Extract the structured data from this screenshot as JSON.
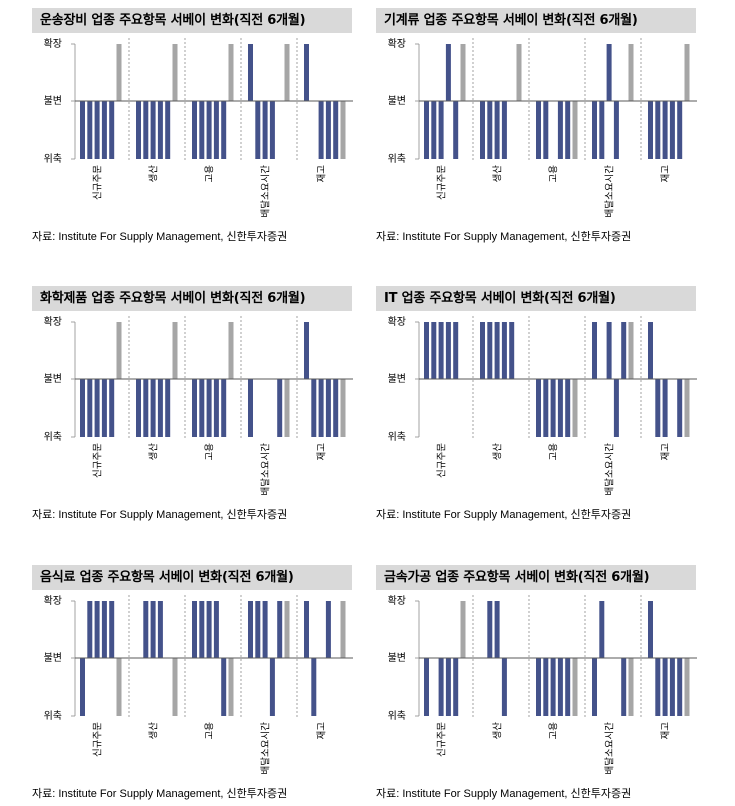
{
  "colors": {
    "bar": "#44528a",
    "latest_bar": "#a6a6a6",
    "title_bg": "#d9d9d9",
    "separator": "#8c8c8c",
    "axis": "#8c8c8c",
    "baseline": "#595959"
  },
  "chart_data": [
    {
      "type": "bar",
      "title": "운송장비 업종 주요항목 서베이 변화(직전 6개월)",
      "categories": [
        "신규주문",
        "생산",
        "고용",
        "배달소요시간",
        "재고"
      ],
      "yticks": [
        1,
        0,
        -1
      ],
      "yticklabels": [
        "확장",
        "불변",
        "위축"
      ],
      "ylim": [
        -1,
        1
      ],
      "values": [
        [
          -1,
          -1,
          -1,
          -1,
          -1,
          1
        ],
        [
          -1,
          -1,
          -1,
          -1,
          -1,
          1
        ],
        [
          -1,
          -1,
          -1,
          -1,
          -1,
          1
        ],
        [
          1,
          -1,
          -1,
          -1,
          0,
          1
        ],
        [
          1,
          0,
          -1,
          -1,
          -1,
          -1
        ]
      ],
      "source": "자료: Institute For Supply Management, 신한투자증권"
    },
    {
      "type": "bar",
      "title": "기계류 업종 주요항목 서베이 변화(직전 6개월)",
      "categories": [
        "신규주문",
        "생산",
        "고용",
        "배달소요시간",
        "재고"
      ],
      "yticks": [
        1,
        0,
        -1
      ],
      "yticklabels": [
        "확장",
        "불변",
        "위축"
      ],
      "ylim": [
        -1,
        1
      ],
      "values": [
        [
          -1,
          -1,
          -1,
          1,
          -1,
          1
        ],
        [
          -1,
          -1,
          -1,
          -1,
          0,
          1
        ],
        [
          -1,
          -1,
          0,
          -1,
          -1,
          -1
        ],
        [
          -1,
          -1,
          1,
          -1,
          0,
          1
        ],
        [
          -1,
          -1,
          -1,
          -1,
          -1,
          1
        ]
      ],
      "source": "자료: Institute For Supply Management, 신한투자증권"
    },
    {
      "type": "bar",
      "title": "화학제품 업종 주요항목 서베이 변화(직전 6개월)",
      "categories": [
        "신규주문",
        "생산",
        "고용",
        "배달소요시간",
        "재고"
      ],
      "yticks": [
        1,
        0,
        -1
      ],
      "yticklabels": [
        "확장",
        "불변",
        "위축"
      ],
      "ylim": [
        -1,
        1
      ],
      "values": [
        [
          -1,
          -1,
          -1,
          -1,
          -1,
          1
        ],
        [
          -1,
          -1,
          -1,
          -1,
          -1,
          1
        ],
        [
          -1,
          -1,
          -1,
          -1,
          -1,
          1
        ],
        [
          -1,
          0,
          0,
          0,
          -1,
          -1
        ],
        [
          1,
          -1,
          -1,
          -1,
          -1,
          -1
        ]
      ],
      "source": "자료: Institute For Supply Management, 신한투자증권"
    },
    {
      "type": "bar",
      "title": "IT 업종 주요항목 서베이 변화(직전 6개월)",
      "categories": [
        "신규주문",
        "생산",
        "고용",
        "배달소요시간",
        "재고"
      ],
      "yticks": [
        1,
        0,
        -1
      ],
      "yticklabels": [
        "확장",
        "불변",
        "위축"
      ],
      "ylim": [
        -1,
        1
      ],
      "values": [
        [
          1,
          1,
          1,
          1,
          1,
          0
        ],
        [
          1,
          1,
          1,
          1,
          1,
          0
        ],
        [
          -1,
          -1,
          -1,
          -1,
          -1,
          -1
        ],
        [
          1,
          0,
          1,
          -1,
          1,
          1
        ],
        [
          1,
          -1,
          -1,
          0,
          -1,
          -1
        ]
      ],
      "source": "자료: Institute For Supply Management, 신한투자증권"
    },
    {
      "type": "bar",
      "title": "음식료 업종 주요항목 서베이 변화(직전 6개월)",
      "categories": [
        "신규주문",
        "생산",
        "고용",
        "배달소요시간",
        "재고"
      ],
      "yticks": [
        1,
        0,
        -1
      ],
      "yticklabels": [
        "확장",
        "불변",
        "위축"
      ],
      "ylim": [
        -1,
        1
      ],
      "values": [
        [
          -1,
          1,
          1,
          1,
          1,
          -1
        ],
        [
          0,
          1,
          1,
          1,
          0,
          -1
        ],
        [
          1,
          1,
          1,
          1,
          -1,
          -1
        ],
        [
          1,
          1,
          1,
          -1,
          1,
          1
        ],
        [
          1,
          -1,
          0,
          1,
          0,
          1
        ]
      ],
      "source": "자료: Institute For Supply Management, 신한투자증권"
    },
    {
      "type": "bar",
      "title": "금속가공 업종 주요항목 서베이 변화(직전 6개월)",
      "categories": [
        "신규주문",
        "생산",
        "고용",
        "배달소요시간",
        "재고"
      ],
      "yticks": [
        1,
        0,
        -1
      ],
      "yticklabels": [
        "확장",
        "불변",
        "위축"
      ],
      "ylim": [
        -1,
        1
      ],
      "values": [
        [
          -1,
          0,
          -1,
          -1,
          -1,
          1
        ],
        [
          0,
          1,
          1,
          -1,
          0,
          0
        ],
        [
          -1,
          -1,
          -1,
          -1,
          -1,
          -1
        ],
        [
          -1,
          1,
          0,
          0,
          -1,
          -1
        ],
        [
          1,
          -1,
          -1,
          -1,
          -1,
          -1
        ]
      ],
      "source": "자료: Institute For Supply Management, 신한투자증권"
    }
  ]
}
